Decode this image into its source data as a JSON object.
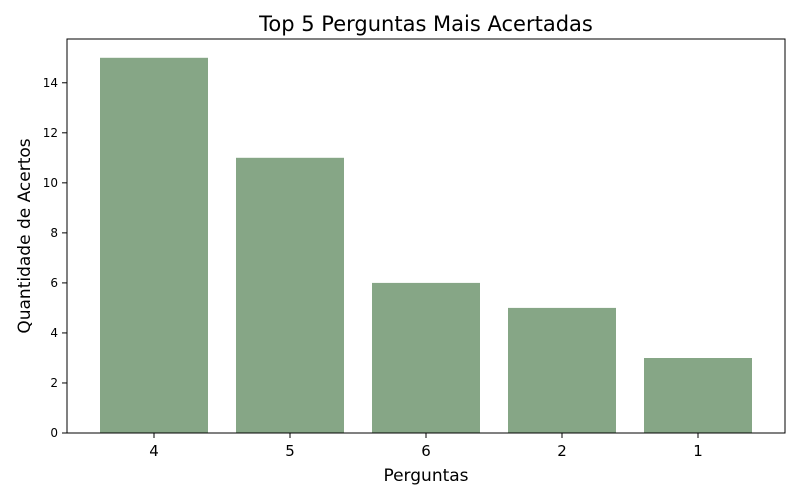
{
  "chart_data": {
    "type": "bar",
    "title": "Top 5 Perguntas Mais Acertadas",
    "xlabel": "Perguntas",
    "ylabel": "Quantidade de Acertos",
    "categories": [
      "4",
      "5",
      "6",
      "2",
      "1"
    ],
    "values": [
      15,
      11,
      6,
      5,
      3
    ],
    "ylim": [
      0,
      15.75
    ],
    "yticks": [
      "0",
      "2",
      "4",
      "6",
      "8",
      "10",
      "12",
      "14"
    ],
    "bar_color": "#86a686",
    "grid": false,
    "legend": "none"
  }
}
